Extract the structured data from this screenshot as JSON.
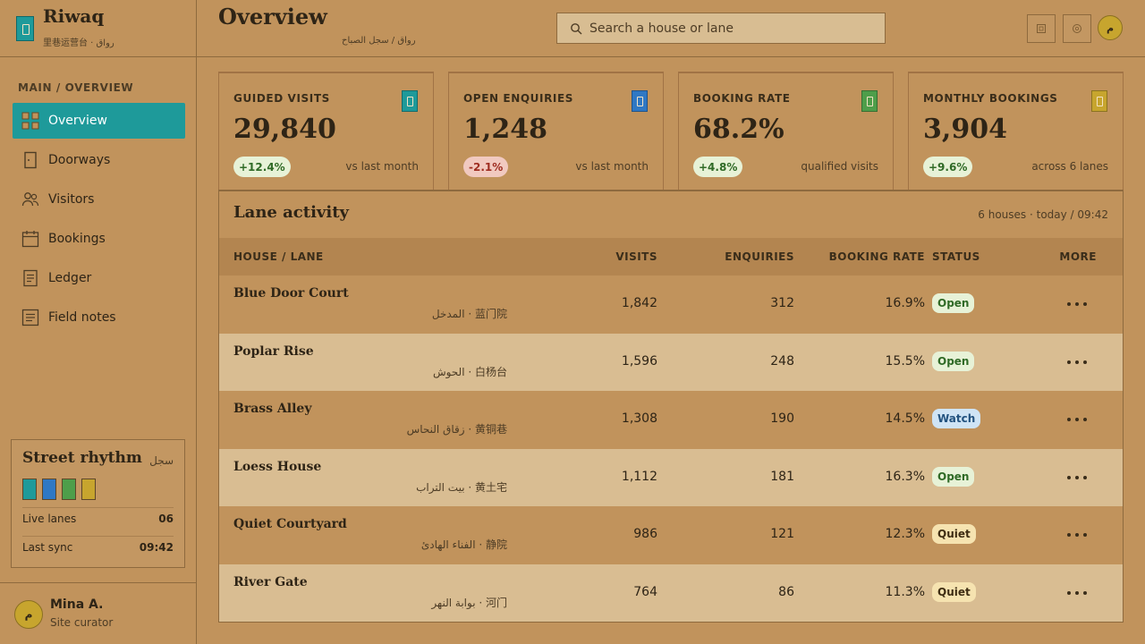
{
  "brand": {
    "name": "Riwaq",
    "subtitle": "里巷运营台 · رواق"
  },
  "nav": {
    "section_title": "MAIN / OVERVIEW",
    "items": [
      {
        "label": "Overview",
        "icon": "grid-icon",
        "active": true
      },
      {
        "label": "Doorways",
        "icon": "door-icon"
      },
      {
        "label": "Visitors",
        "icon": "people-icon"
      },
      {
        "label": "Bookings",
        "icon": "calendar-icon"
      },
      {
        "label": "Ledger",
        "icon": "ledger-icon"
      },
      {
        "label": "Field notes",
        "icon": "notes-icon"
      }
    ]
  },
  "rhythm": {
    "title": "Street rhythm",
    "arabic": "سجل",
    "swatches": [
      "#1e9a9a",
      "#2f78c4",
      "#4e9e4a",
      "#c7a52e"
    ],
    "live_lanes_label": "Live lanes",
    "live_lanes_value": "06",
    "last_sync_label": "Last sync",
    "last_sync_value": "09:42"
  },
  "user": {
    "name": "Mina A.",
    "role": "Site curator",
    "initial": "م"
  },
  "header": {
    "title": "Overview",
    "breadcrumb": "رواق / سجل الصباح",
    "search_placeholder": "Search a house or lane",
    "avatar_initial": "م"
  },
  "kpis": [
    {
      "label": "GUIDED VISITS",
      "value": "29,840",
      "delta": "+12.4%",
      "trend": "up",
      "note": "vs last month",
      "color": "#1e9a9a"
    },
    {
      "label": "OPEN ENQUIRIES",
      "value": "1,248",
      "delta": "-2.1%",
      "trend": "down",
      "note": "vs last month",
      "color": "#2f78c4"
    },
    {
      "label": "BOOKING RATE",
      "value": "68.2%",
      "delta": "+4.8%",
      "trend": "up",
      "note": "qualified visits",
      "color": "#4e9e4a"
    },
    {
      "label": "MONTHLY BOOKINGS",
      "value": "3,904",
      "delta": "+9.6%",
      "trend": "up",
      "note": "across 6 lanes",
      "color": "#c7a52e"
    }
  ],
  "table": {
    "title": "Lane activity",
    "meta": "6 houses · today / 09:42",
    "columns": {
      "house": "HOUSE / LANE",
      "visits": "VISITS",
      "enquiries": "ENQUIRIES",
      "rate": "BOOKING RATE",
      "status": "STATUS",
      "more": "MORE"
    },
    "rows": [
      {
        "name": "Blue Door Court",
        "sub": "المدخل · 蓝门院",
        "visits": "1,842",
        "enquiries": "312",
        "rate": "16.9%",
        "status": "Open",
        "status_kind": "open"
      },
      {
        "name": "Poplar Rise",
        "sub": "الحوش · 白杨台",
        "visits": "1,596",
        "enquiries": "248",
        "rate": "15.5%",
        "status": "Open",
        "status_kind": "open"
      },
      {
        "name": "Brass Alley",
        "sub": "زقاق النحاس · 黄铜巷",
        "visits": "1,308",
        "enquiries": "190",
        "rate": "14.5%",
        "status": "Watch",
        "status_kind": "watch"
      },
      {
        "name": "Loess House",
        "sub": "بيت التراب · 黄土宅",
        "visits": "1,112",
        "enquiries": "181",
        "rate": "16.3%",
        "status": "Open",
        "status_kind": "open"
      },
      {
        "name": "Quiet Courtyard",
        "sub": "الفناء الهادئ · 静院",
        "visits": "986",
        "enquiries": "121",
        "rate": "12.3%",
        "status": "Quiet",
        "status_kind": "quiet"
      },
      {
        "name": "River Gate",
        "sub": "بوابة النهر · 河门",
        "visits": "764",
        "enquiries": "86",
        "rate": "11.3%",
        "status": "Quiet",
        "status_kind": "quiet"
      }
    ]
  }
}
